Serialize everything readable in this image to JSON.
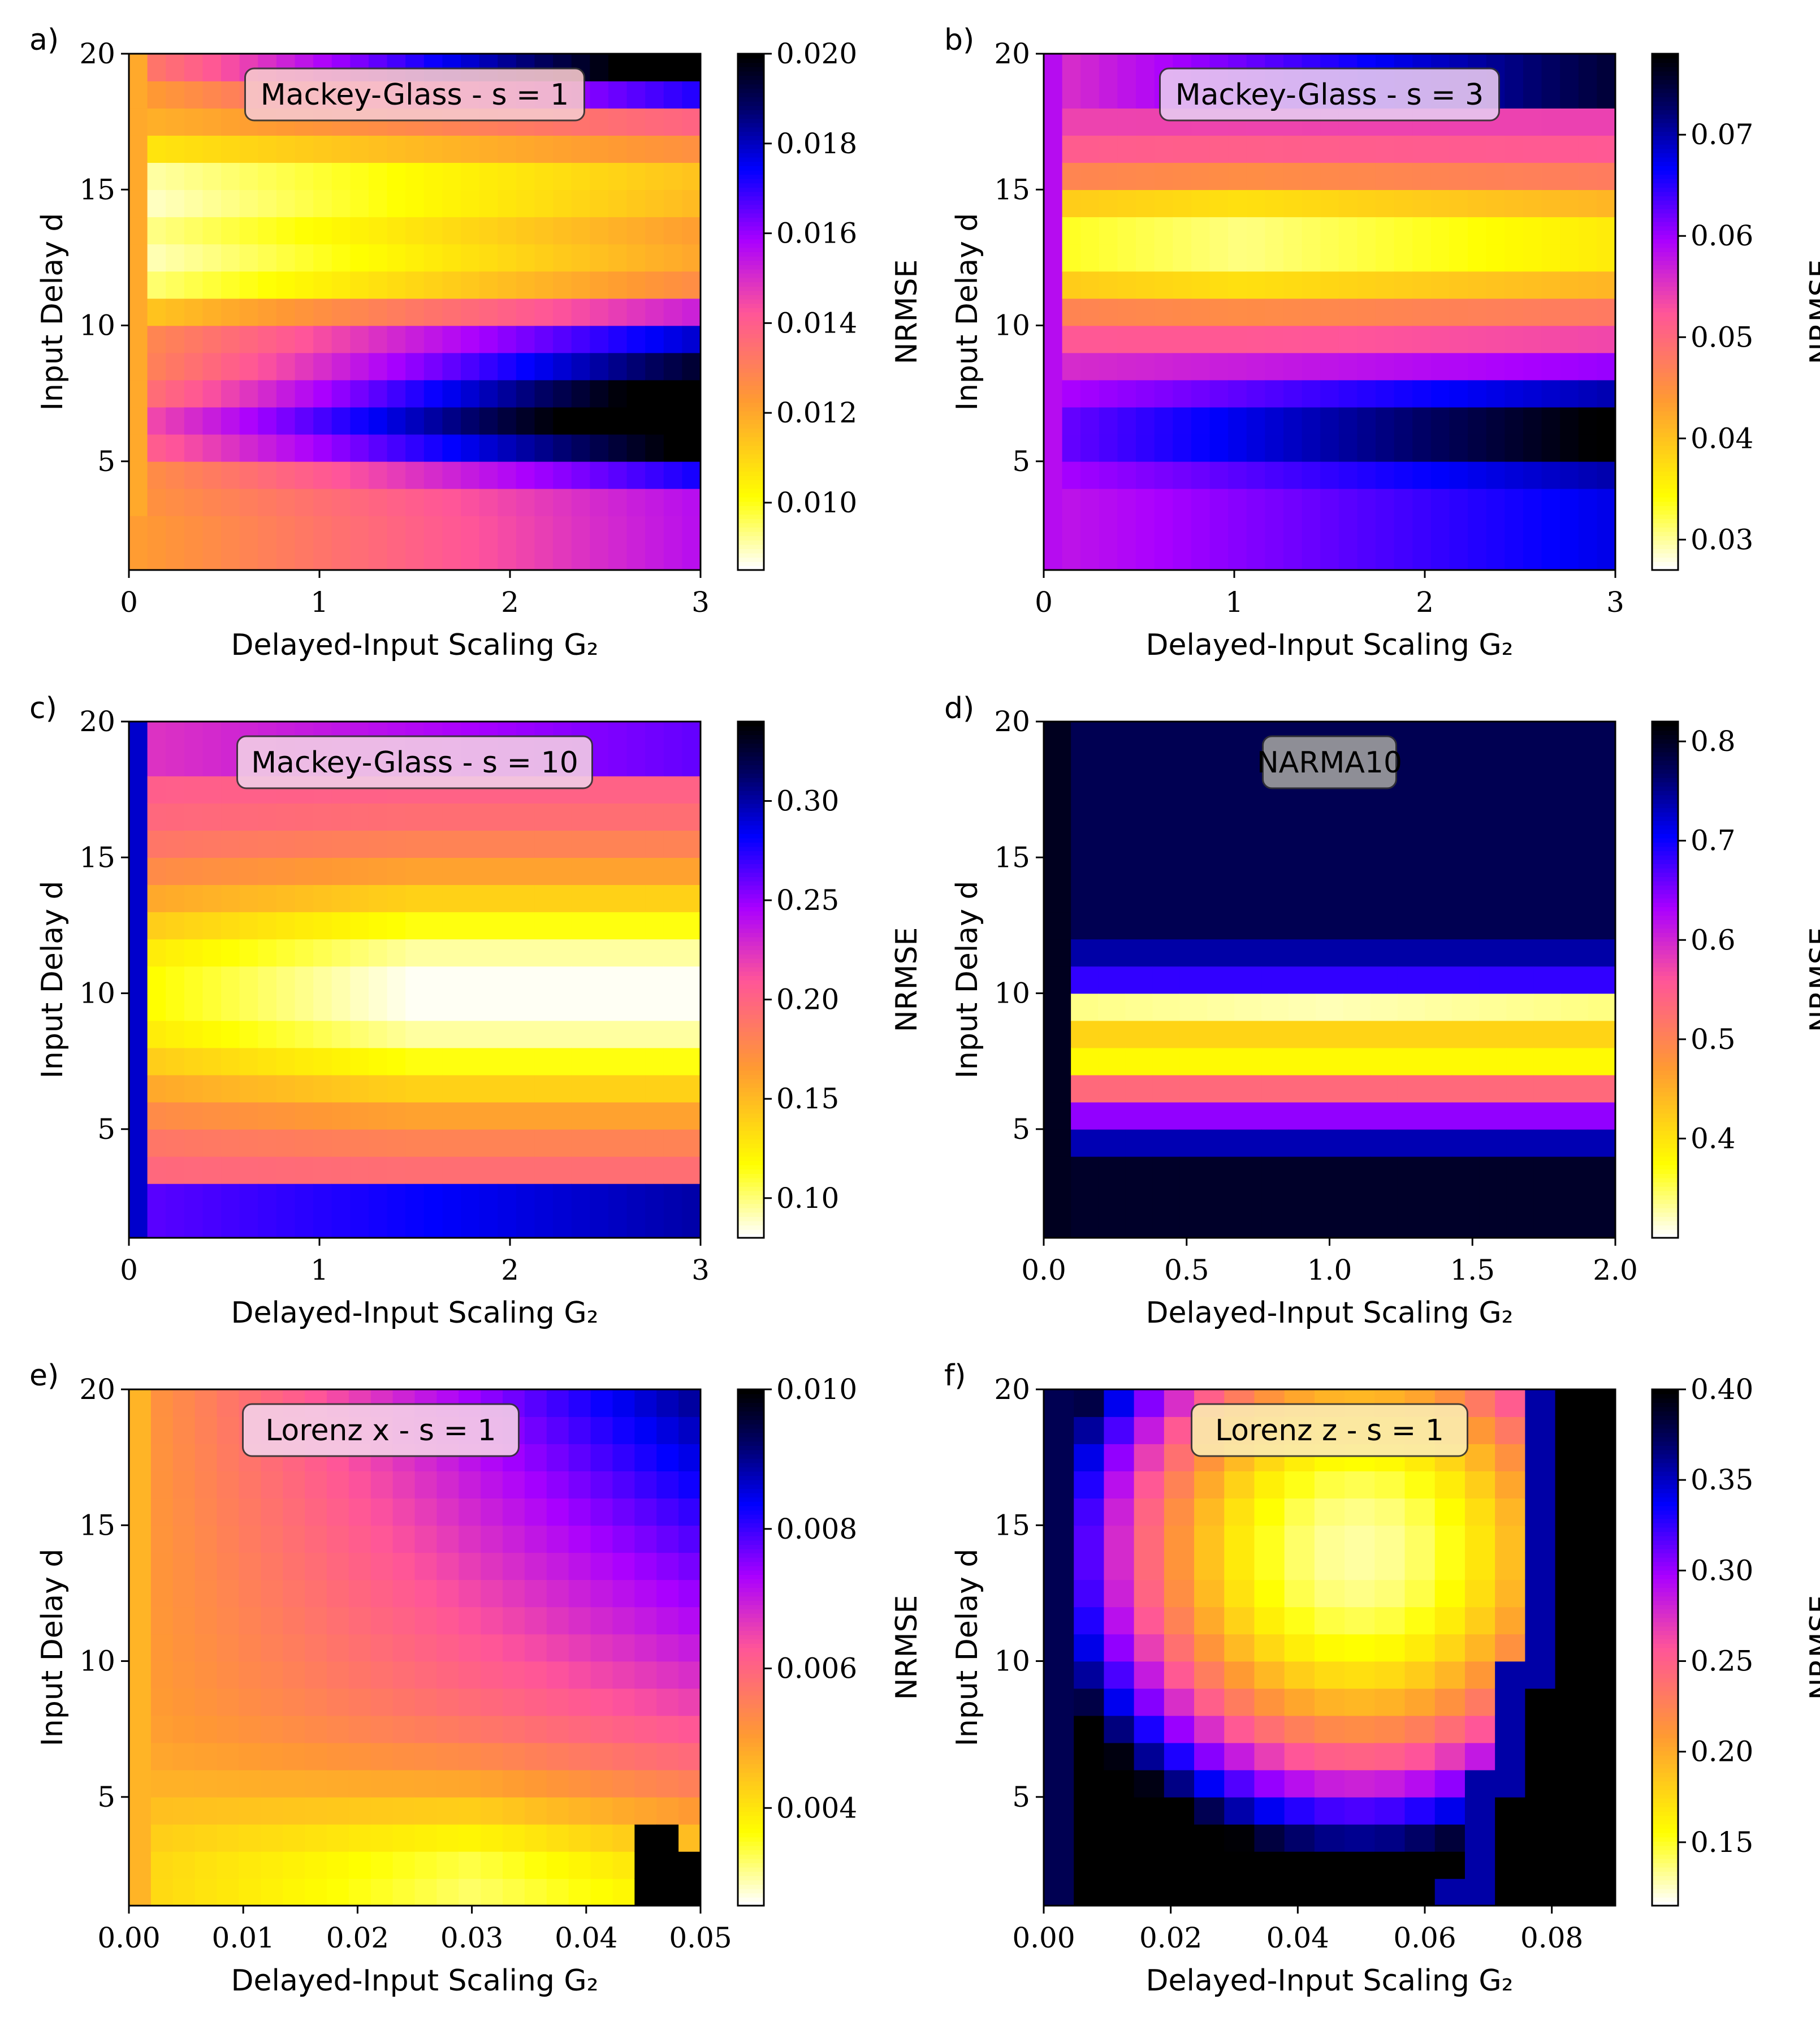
{
  "figure": {
    "colormap": "gnuplot2_r",
    "colormap_stops": [
      "#ffffff",
      "#ffff00",
      "#ff9933",
      "#ff5599",
      "#aa00ff",
      "#0000ff",
      "#000066",
      "#000000"
    ]
  },
  "chart_data": [
    {
      "panel": "a)",
      "type": "heatmap",
      "title": "Mackey-Glass - s = 1",
      "xlabel": "Delayed-Input Scaling G₂",
      "ylabel": "Input Delay d",
      "colorbar_label": "NRMSE",
      "xlim": [
        0,
        3
      ],
      "ylim": [
        1,
        20
      ],
      "xticks": [
        "0",
        "1",
        "2",
        "3"
      ],
      "yticks": [
        "5",
        "10",
        "15",
        "20"
      ],
      "cbar_range": [
        0.0085,
        0.02
      ],
      "cbar_ticks": [
        "0.010",
        "0.012",
        "0.014",
        "0.016",
        "0.018",
        "0.020"
      ],
      "grid": [
        31,
        19
      ],
      "z_min_location": {
        "G2": 0.6,
        "d": 13.5
      },
      "z_max_region": {
        "G2": [
          1.9,
          3.0
        ],
        "d": [
          5,
          9
        ]
      },
      "title_box": "#f7c8cc"
    },
    {
      "panel": "b)",
      "type": "heatmap",
      "title": "Mackey-Glass - s = 3",
      "xlabel": "Delayed-Input Scaling G₂",
      "ylabel": "Input Delay d",
      "colorbar_label": "NRMSE",
      "xlim": [
        0,
        3
      ],
      "ylim": [
        1,
        20
      ],
      "xticks": [
        "0",
        "1",
        "2",
        "3"
      ],
      "yticks": [
        "5",
        "10",
        "15",
        "20"
      ],
      "cbar_range": [
        0.027,
        0.078
      ],
      "cbar_ticks": [
        "0.03",
        "0.04",
        "0.05",
        "0.06",
        "0.07"
      ],
      "grid": [
        31,
        19
      ],
      "z_min_location": {
        "G2": 1.0,
        "d": 13
      },
      "z_max_region": {
        "G2": [
          1.5,
          3.0
        ],
        "d": [
          4,
          7
        ]
      },
      "title_box": "#e8c8f0"
    },
    {
      "panel": "c)",
      "type": "heatmap",
      "title": "Mackey-Glass - s = 10",
      "xlabel": "Delayed-Input Scaling G₂",
      "ylabel": "Input Delay d",
      "colorbar_label": "NRMSE",
      "xlim": [
        0,
        3
      ],
      "ylim": [
        1,
        20
      ],
      "xticks": [
        "0",
        "1",
        "2",
        "3"
      ],
      "yticks": [
        "5",
        "10",
        "15",
        "20"
      ],
      "cbar_range": [
        0.08,
        0.34
      ],
      "cbar_ticks": [
        "0.10",
        "0.15",
        "0.20",
        "0.25",
        "0.30"
      ],
      "grid": [
        31,
        19
      ],
      "z_min_location": {
        "G2": 1.8,
        "d": 10
      },
      "z_max_region": {
        "G2": [
          0,
          0.1
        ],
        "d": [
          1,
          20
        ]
      },
      "title_box": "#f2cde6"
    },
    {
      "panel": "d)",
      "type": "heatmap",
      "title": "NARMA10",
      "xlabel": "Delayed-Input Scaling G₂",
      "ylabel": "Input Delay d",
      "colorbar_label": "NRMSE",
      "xlim": [
        0,
        2
      ],
      "ylim": [
        1,
        20
      ],
      "xticks": [
        "0.0",
        "0.5",
        "1.0",
        "1.5",
        "2.0"
      ],
      "yticks": [
        "5",
        "10",
        "15",
        "20"
      ],
      "cbar_range": [
        0.3,
        0.82
      ],
      "cbar_ticks": [
        "0.4",
        "0.5",
        "0.6",
        "0.7",
        "0.8"
      ],
      "grid": [
        21,
        19
      ],
      "z_min_location": {
        "G2": 1.0,
        "d": 9
      },
      "z_max_region": {
        "G2": [
          0,
          2
        ],
        "d": [
          1,
          4
        ]
      },
      "title_box": "#9e9e9e"
    },
    {
      "panel": "e)",
      "type": "heatmap",
      "title": "Lorenz x - s = 1",
      "xlabel": "Delayed-Input Scaling G₂",
      "ylabel": "Input Delay d",
      "colorbar_label": "NRMSE",
      "xlim": [
        0,
        0.05
      ],
      "ylim": [
        1,
        20
      ],
      "xticks": [
        "0.00",
        "0.01",
        "0.02",
        "0.03",
        "0.04",
        "0.05"
      ],
      "yticks": [
        "5",
        "10",
        "15",
        "20"
      ],
      "cbar_range": [
        0.0026,
        0.01
      ],
      "cbar_ticks": [
        "0.004",
        "0.006",
        "0.008",
        "0.010"
      ],
      "grid": [
        26,
        19
      ],
      "z_min_location": {
        "G2": 0.03,
        "d": 2
      },
      "z_max_region": {
        "G2": [
          0.045,
          0.05
        ],
        "d": [
          1,
          4
        ]
      },
      "title_box": "#f5d0e8"
    },
    {
      "panel": "f)",
      "type": "heatmap",
      "title": "Lorenz z - s = 1",
      "xlabel": "Delayed-Input Scaling G₂",
      "ylabel": "Input Delay d",
      "colorbar_label": "NRMSE",
      "xlim": [
        0,
        0.09
      ],
      "ylim": [
        1,
        20
      ],
      "xticks": [
        "0.00",
        "0.02",
        "0.04",
        "0.06",
        "0.08"
      ],
      "yticks": [
        "5",
        "10",
        "15",
        "20"
      ],
      "cbar_range": [
        0.115,
        0.4
      ],
      "cbar_ticks": [
        "0.15",
        "0.20",
        "0.25",
        "0.30",
        "0.35",
        "0.40"
      ],
      "grid": [
        19,
        19
      ],
      "z_min_location": {
        "G2": 0.05,
        "d": 14
      },
      "z_max_region": {
        "G2": [
          0.07,
          0.09
        ],
        "d": [
          1,
          8
        ]
      },
      "title_box": "#fbeab0"
    }
  ]
}
